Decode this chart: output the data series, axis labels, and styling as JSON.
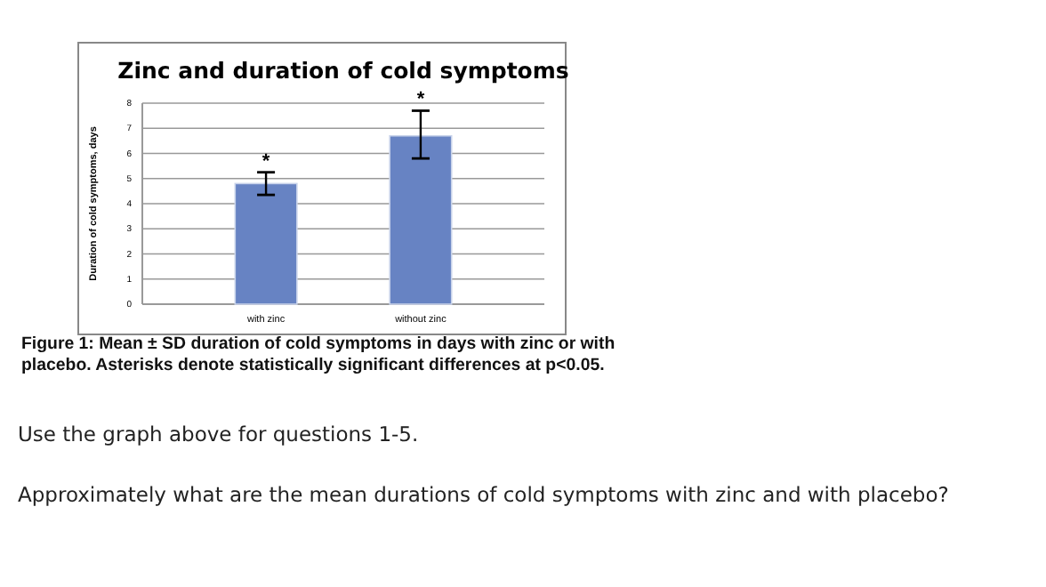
{
  "chart_data": {
    "type": "bar",
    "title": "Zinc and duration of cold symptoms",
    "ylabel": "Duration of cold symptoms, days",
    "categories": [
      "with zinc",
      "without zinc"
    ],
    "values": [
      4.8,
      6.7
    ],
    "color": "#6783c3",
    "errors": [
      0.45,
      [
        5.8,
        7.7
      ]
    ],
    "ylim": [
      0,
      8
    ],
    "yticks": [
      0,
      1,
      2,
      3,
      4,
      5,
      6,
      7,
      8
    ],
    "grid": "y",
    "annotations": [
      {
        "text": "*",
        "x": "with zinc",
        "y": 5.25
      },
      {
        "text": "*",
        "x": "without zinc",
        "y": 7.7
      },
      "Figure 1: Mean ± SD duration of cold symptoms in days with zinc or with placebo. Asterisks denote statistically significant differences at p<0.05.",
      "Use the graph above for questions 1-5.",
      "Approximately what are the mean durations of cold symptoms with zinc and with placebo?"
    ]
  }
}
